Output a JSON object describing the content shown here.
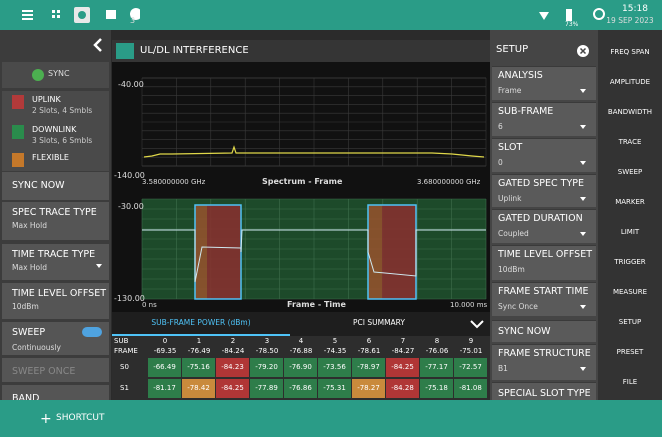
{
  "status_bar": {
    "notifications": "3",
    "battery": "73%",
    "time": "15:18",
    "date": "19 SEP 2023"
  },
  "left_panel": {
    "sync": "SYNC",
    "legend": [
      {
        "label": "UPLINK",
        "detail": "2 Slots, 4 Smbls"
      },
      {
        "label": "DOWNLINK",
        "detail": "3 Slots, 6 Smbls"
      },
      {
        "label": "FLEXIBLE"
      }
    ],
    "items": [
      {
        "label": "SYNC NOW"
      },
      {
        "label": "SPEC TRACE TYPE",
        "value": "Max Hold"
      },
      {
        "label": "TIME TRACE TYPE",
        "value": "Max Hold"
      },
      {
        "label": "TIME LEVEL OFFSET",
        "value": "10dBm"
      },
      {
        "label": "SWEEP",
        "value": "Continuously"
      },
      {
        "label": "SWEEP ONCE"
      },
      {
        "label": "BAND"
      }
    ]
  },
  "title": "UL/DL INTERFERENCE",
  "spectrum_plot": {
    "y_top": "-40.00",
    "y_bottom": "-140.00",
    "x_start": "3.580000000 GHz",
    "caption": "Spectrum - Frame",
    "x_end": "3.680000000 GHz"
  },
  "time_plot": {
    "y_top": "-30.00",
    "y_bottom": "-130.00",
    "x_start": "0 ns",
    "caption": "Frame - Time",
    "x_end": "10.000 ms"
  },
  "tabs": [
    "SUB-FRAME POWER (dBm)",
    "PCI SUMMARY"
  ],
  "table": {
    "header": [
      "SUB",
      "FRAME"
    ],
    "columns": [
      "0",
      "1",
      "2",
      "3",
      "4",
      "5",
      "6",
      "7",
      "8",
      "9"
    ],
    "frame": [
      "-69.35",
      "-76.49",
      "-84.24",
      "-78.50",
      "-76.88",
      "-74.35",
      "-78.61",
      "-84.27",
      "-76.06",
      "-75.01"
    ],
    "rows": [
      {
        "label": "S0",
        "values": [
          "-66.49",
          "-75.16",
          "-84.23",
          "-79.20",
          "-76.90",
          "-73.56",
          "-78.97",
          "-84.25",
          "-77.17",
          "-72.57"
        ]
      },
      {
        "label": "S1",
        "values": [
          "-81.17",
          "-78.42",
          "-84.25",
          "-77.89",
          "-76.86",
          "-75.31",
          "-78.27",
          "-84.28",
          "-75.18",
          "-81.08"
        ]
      }
    ]
  },
  "setup_panel": {
    "title": "SETUP",
    "items": [
      {
        "label": "ANALYSIS",
        "value": "Frame"
      },
      {
        "label": "SUB-FRAME",
        "value": "6"
      },
      {
        "label": "SLOT",
        "value": "0"
      },
      {
        "label": "GATED SPEC TYPE",
        "value": "Uplink"
      },
      {
        "label": "GATED DURATION",
        "value": "Coupled"
      },
      {
        "label": "TIME LEVEL OFFSET",
        "value": "10dBm"
      },
      {
        "label": "FRAME START TIME",
        "value": "Sync Once"
      },
      {
        "label": "SYNC NOW"
      },
      {
        "label": "FRAME STRUCTURE",
        "value": "B1"
      },
      {
        "label": "SPECIAL SLOT TYPE"
      }
    ]
  },
  "menu": [
    "FREQ SPAN",
    "AMPLITUDE",
    "BANDWIDTH",
    "TRACE",
    "SWEEP",
    "MARKER",
    "LIMIT",
    "TRIGGER",
    "MEASURE",
    "SETUP",
    "PRESET",
    "FILE"
  ],
  "shortcut": "SHORTCUT"
}
